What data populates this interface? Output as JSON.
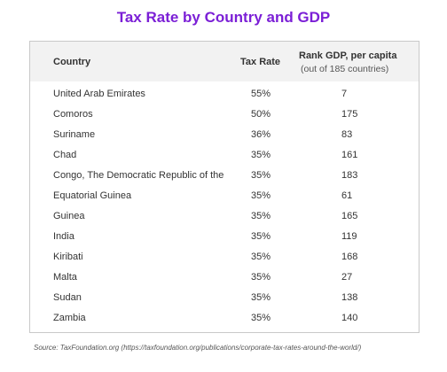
{
  "chart_data": {
    "type": "table",
    "title": "Tax Rate by Country and GDP",
    "columns": [
      "Country",
      "Tax Rate",
      "Rank GDP, per capita",
      "(out of 185 countries)"
    ],
    "rows": [
      {
        "country": "United Arab Emirates",
        "tax_rate": "55%",
        "rank": "7"
      },
      {
        "country": "Comoros",
        "tax_rate": "50%",
        "rank": "175"
      },
      {
        "country": "Suriname",
        "tax_rate": "36%",
        "rank": "83"
      },
      {
        "country": "Chad",
        "tax_rate": "35%",
        "rank": "161"
      },
      {
        "country": "Congo, The Democratic Republic of the",
        "tax_rate": "35%",
        "rank": "183"
      },
      {
        "country": "Equatorial Guinea",
        "tax_rate": "35%",
        "rank": "61"
      },
      {
        "country": "Guinea",
        "tax_rate": "35%",
        "rank": "165"
      },
      {
        "country": "India",
        "tax_rate": "35%",
        "rank": "119"
      },
      {
        "country": "Kiribati",
        "tax_rate": "35%",
        "rank": "168"
      },
      {
        "country": "Malta",
        "tax_rate": "35%",
        "rank": "27"
      },
      {
        "country": "Sudan",
        "tax_rate": "35%",
        "rank": "138"
      },
      {
        "country": "Zambia",
        "tax_rate": "35%",
        "rank": "140"
      }
    ],
    "source": "Source: TaxFoundation.org (https://taxfoundation.org/publications/corporate-tax-rates-around-the-world/)"
  },
  "colors": {
    "title": "#7b1fd6",
    "header_bg": "#f2f2f2",
    "border": "#c9c9c9"
  }
}
